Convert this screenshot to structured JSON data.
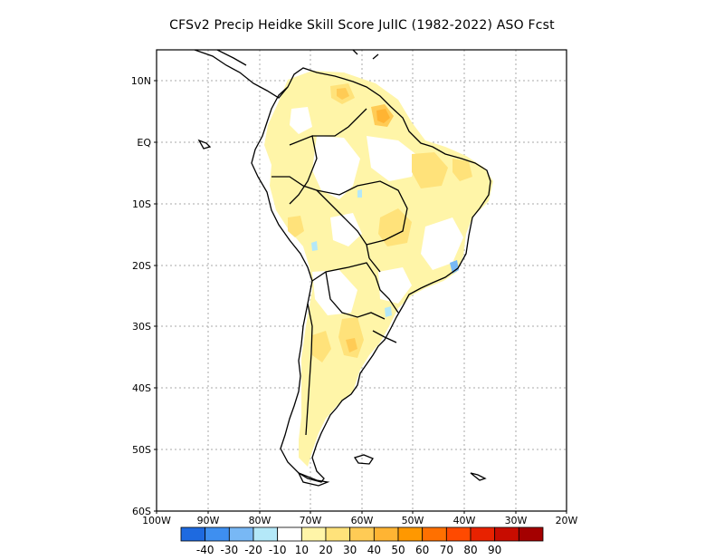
{
  "title": "CFSv2 Precip Heidke Skill Score JulIC (1982-2022) ASO Fcst",
  "lat_labels": [
    "10N",
    "EQ",
    "10S",
    "20S",
    "30S",
    "40S",
    "50S",
    "60S"
  ],
  "lon_labels": [
    "100W",
    "90W",
    "80W",
    "70W",
    "60W",
    "50W",
    "40W",
    "30W",
    "20W"
  ],
  "colorbar": {
    "colors": [
      "#1e6ae0",
      "#3e8ff0",
      "#78b8f5",
      "#b4e8f8",
      "#ffffff",
      "#fff5a8",
      "#ffe27a",
      "#ffcb55",
      "#ffb433",
      "#ff9800",
      "#ff7000",
      "#ff4a00",
      "#e82200",
      "#c80c00",
      "#a40000"
    ],
    "labels": [
      "-40",
      "-30",
      "-20",
      "-10",
      "10",
      "20",
      "30",
      "40",
      "50",
      "60",
      "70",
      "80",
      "90"
    ]
  }
}
